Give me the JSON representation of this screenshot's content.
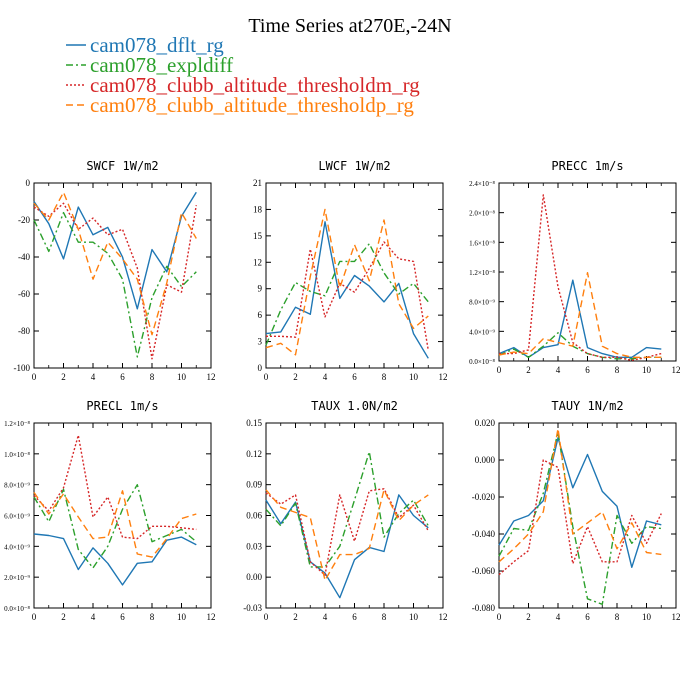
{
  "title": "Time Series at270E,-24N",
  "colors": {
    "blue": "#1f77b4",
    "green": "#2ca02c",
    "red": "#d62728",
    "orange": "#ff7f0e"
  },
  "legend": [
    {
      "label": "cam078_dflt_rg",
      "color": "#1f77b4",
      "dash": "solid"
    },
    {
      "label": "cam078_expldiff",
      "color": "#2ca02c",
      "dash": "dashdot"
    },
    {
      "label": "cam078_clubb_altitude_thresholdm_rg",
      "color": "#d62728",
      "dash": "dotted"
    },
    {
      "label": "cam078_clubb_altitude_thresholdp_rg",
      "color": "#ff7f0e",
      "dash": "dashed"
    }
  ],
  "chart_data": [
    {
      "type": "line",
      "title": "SWCF   1W/m2",
      "xlim": [
        0,
        12
      ],
      "ylim": [
        -100,
        0
      ],
      "xticks": [
        0,
        2,
        4,
        6,
        8,
        10,
        12
      ],
      "xticklabels": [
        "0",
        "2",
        "4",
        "6",
        "8",
        "10",
        "12"
      ],
      "yticks": [
        -100,
        -80,
        -60,
        -40,
        -20,
        0
      ],
      "yticklabels": [
        "-100",
        "-80",
        "-60",
        "-40",
        "-20",
        "0"
      ],
      "x": [
        0,
        1,
        2,
        3,
        4,
        5,
        6,
        7,
        8,
        9,
        10,
        11
      ],
      "series": [
        {
          "name": "cam078_dflt_rg",
          "values": [
            -10,
            -22,
            -41,
            -13,
            -28,
            -24,
            -40,
            -68,
            -36,
            -48,
            -18,
            -5
          ]
        },
        {
          "name": "cam078_expldiff",
          "values": [
            -20,
            -37,
            -16,
            -32,
            -32,
            -38,
            -52,
            -94,
            -62,
            -45,
            -56,
            -48
          ]
        },
        {
          "name": "cam078_clubb_altitude_thresholdm_rg",
          "values": [
            -13,
            -18,
            -11,
            -25,
            -19,
            -28,
            -25,
            -46,
            -95,
            -55,
            -59,
            -12
          ]
        },
        {
          "name": "cam078_clubb_altitude_thresholdp_rg",
          "values": [
            -11,
            -20,
            -5,
            -25,
            -52,
            -32,
            -41,
            -52,
            -82,
            -54,
            -16,
            -30
          ]
        }
      ]
    },
    {
      "type": "line",
      "title": "LWCF   1W/m2",
      "xlim": [
        0,
        12
      ],
      "ylim": [
        0,
        21
      ],
      "xticks": [
        0,
        2,
        4,
        6,
        8,
        10,
        12
      ],
      "xticklabels": [
        "0",
        "2",
        "4",
        "6",
        "8",
        "10",
        "12"
      ],
      "yticks": [
        0,
        3,
        6,
        9,
        12,
        15,
        18,
        21
      ],
      "yticklabels": [
        "0",
        "3",
        "6",
        "9",
        "12",
        "15",
        "18",
        "21"
      ],
      "x": [
        0,
        1,
        2,
        3,
        4,
        5,
        6,
        7,
        8,
        9,
        10,
        11
      ],
      "series": [
        {
          "name": "cam078_dflt_rg",
          "values": [
            3.9,
            4.1,
            6.9,
            6.1,
            16.6,
            7.9,
            10.5,
            9.3,
            7.5,
            9.6,
            3.9,
            1.1
          ]
        },
        {
          "name": "cam078_expldiff",
          "values": [
            2.6,
            6.6,
            9.7,
            8.7,
            8.2,
            12.1,
            12.1,
            14.1,
            10.8,
            8.4,
            9.6,
            7.5
          ]
        },
        {
          "name": "cam078_clubb_altitude_thresholdm_rg",
          "values": [
            3.6,
            3.6,
            3.5,
            13.5,
            5.8,
            9.6,
            8.6,
            11.3,
            14.3,
            12.4,
            12.1,
            2.0
          ]
        },
        {
          "name": "cam078_clubb_altitude_thresholdp_rg",
          "values": [
            2.3,
            2.8,
            1.5,
            10.4,
            18.0,
            9.1,
            14.0,
            9.9,
            16.8,
            7.3,
            4.5,
            5.9
          ]
        }
      ]
    },
    {
      "type": "line",
      "title": "PRECC   1m/s",
      "xlim": [
        0,
        12
      ],
      "ylim": [
        0,
        2.4e-08
      ],
      "xticks": [
        0,
        2,
        4,
        6,
        8,
        10,
        12
      ],
      "xticklabels": [
        "0",
        "2",
        "4",
        "6",
        "8",
        "10",
        "12"
      ],
      "yticks": [
        0,
        4e-09,
        8e-09,
        1.2e-08,
        1.6e-08,
        2e-08,
        2.4e-08
      ],
      "yticklabels": [
        "0.0×10⁻⁸",
        "4.0×10⁻⁹",
        "8.0×10⁻⁹",
        "1.2×10⁻⁸",
        "1.6×10⁻⁸",
        "2.0×10⁻⁸",
        "2.4×10⁻⁸"
      ],
      "x": [
        0,
        1,
        2,
        3,
        4,
        5,
        6,
        7,
        8,
        9,
        10,
        11
      ],
      "series": [
        {
          "name": "cam078_dflt_rg",
          "values": [
            1e-09,
            1.8e-09,
            5e-10,
            1.8e-09,
            2.2e-09,
            1.09e-08,
            1.8e-09,
            1e-09,
            5e-10,
            5e-10,
            1.8e-09,
            1.6e-09
          ]
        },
        {
          "name": "cam078_expldiff",
          "values": [
            8e-10,
            1.6e-09,
            5e-10,
            2e-09,
            3.8e-09,
            2e-09,
            1e-09,
            5e-10,
            3e-10,
            3e-10,
            5e-10,
            5e-10
          ]
        },
        {
          "name": "cam078_clubb_altitude_thresholdm_rg",
          "values": [
            1e-09,
            1e-09,
            1.5e-09,
            2.24e-08,
            1e-08,
            2.5e-09,
            1e-09,
            5e-10,
            5e-10,
            1e-10,
            5e-10,
            1e-09
          ]
        },
        {
          "name": "cam078_clubb_altitude_thresholdp_rg",
          "values": [
            8e-10,
            1.2e-09,
            1e-09,
            3e-09,
            2.5e-09,
            2e-09,
            1.19e-08,
            2e-09,
            1e-09,
            5e-10,
            5e-10,
            5e-10
          ]
        }
      ]
    },
    {
      "type": "line",
      "title": "PRECL   1m/s",
      "xlim": [
        0,
        12
      ],
      "ylim": [
        0,
        1.2e-08
      ],
      "xticks": [
        0,
        2,
        4,
        6,
        8,
        10,
        12
      ],
      "xticklabels": [
        "0",
        "2",
        "4",
        "6",
        "8",
        "10",
        "12"
      ],
      "yticks": [
        0,
        2e-09,
        4e-09,
        6e-09,
        8e-09,
        1e-08,
        1.2e-08
      ],
      "yticklabels": [
        "0.0×10⁻⁸",
        "2.0×10⁻⁹",
        "4.0×10⁻⁹",
        "6.0×10⁻⁹",
        "8.0×10⁻⁹",
        "1.0×10⁻⁸",
        "1.2×10⁻⁸"
      ],
      "x": [
        0,
        1,
        2,
        3,
        4,
        5,
        6,
        7,
        8,
        9,
        10,
        11
      ],
      "series": [
        {
          "name": "cam078_dflt_rg",
          "values": [
            4.8e-09,
            4.7e-09,
            4.5e-09,
            2.5e-09,
            3.9e-09,
            2.9e-09,
            1.5e-09,
            2.9e-09,
            3e-09,
            4.4e-09,
            4.6e-09,
            4.1e-09
          ]
        },
        {
          "name": "cam078_expldiff",
          "values": [
            7.2e-09,
            5.6e-09,
            7.7e-09,
            3.8e-09,
            2.6e-09,
            4e-09,
            6.4e-09,
            8e-09,
            4.3e-09,
            4.7e-09,
            5.1e-09,
            4.3e-09
          ]
        },
        {
          "name": "cam078_clubb_altitude_thresholdm_rg",
          "values": [
            7.3e-09,
            6.3e-09,
            7.8e-09,
            1.12e-08,
            5.9e-09,
            7.2e-09,
            4.6e-09,
            4.5e-09,
            5.3e-09,
            5.3e-09,
            5.2e-09,
            5.1e-09
          ]
        },
        {
          "name": "cam078_clubb_altitude_thresholdp_rg",
          "values": [
            7.5e-09,
            6.1e-09,
            7.4e-09,
            5.9e-09,
            4.5e-09,
            4.6e-09,
            7.6e-09,
            3.5e-09,
            3.3e-09,
            4.5e-09,
            5.8e-09,
            6.1e-09
          ]
        }
      ]
    },
    {
      "type": "line",
      "title": "TAUX   1.0N/m2",
      "xlim": [
        0,
        12
      ],
      "ylim": [
        -0.03,
        0.15
      ],
      "xticks": [
        0,
        2,
        4,
        6,
        8,
        10,
        12
      ],
      "xticklabels": [
        "0",
        "2",
        "4",
        "6",
        "8",
        "10",
        "12"
      ],
      "yticks": [
        -0.03,
        0,
        0.03,
        0.06,
        0.09,
        0.12,
        0.15
      ],
      "yticklabels": [
        "-0.03",
        "0.00",
        "0.03",
        "0.06",
        "0.09",
        "0.12",
        "0.15"
      ],
      "x": [
        0,
        1,
        2,
        3,
        4,
        5,
        6,
        7,
        8,
        9,
        10,
        11
      ],
      "series": [
        {
          "name": "cam078_dflt_rg",
          "values": [
            0.075,
            0.052,
            0.073,
            0.015,
            0.004,
            -0.02,
            0.017,
            0.029,
            0.025,
            0.08,
            0.06,
            0.048
          ]
        },
        {
          "name": "cam078_expldiff",
          "values": [
            0.066,
            0.05,
            0.072,
            0.01,
            0.01,
            0.03,
            0.075,
            0.122,
            0.039,
            0.062,
            0.075,
            0.05
          ]
        },
        {
          "name": "cam078_clubb_altitude_thresholdm_rg",
          "values": [
            0.082,
            0.071,
            0.08,
            0.015,
            0.002,
            0.08,
            0.035,
            0.084,
            0.086,
            0.058,
            0.07,
            0.045
          ]
        },
        {
          "name": "cam078_clubb_altitude_thresholdp_rg",
          "values": [
            0.085,
            0.068,
            0.063,
            0.058,
            -0.003,
            0.022,
            0.022,
            0.028,
            0.085,
            0.055,
            0.07,
            0.08
          ]
        }
      ]
    },
    {
      "type": "line",
      "title": "TAUY   1N/m2",
      "xlim": [
        0,
        12
      ],
      "ylim": [
        -0.08,
        0.02
      ],
      "xticks": [
        0,
        2,
        4,
        6,
        8,
        10,
        12
      ],
      "xticklabels": [
        "0",
        "2",
        "4",
        "6",
        "8",
        "10",
        "12"
      ],
      "yticks": [
        -0.08,
        -0.06,
        -0.04,
        -0.02,
        0,
        0.02
      ],
      "yticklabels": [
        "-0.080",
        "-0.060",
        "-0.040",
        "-0.020",
        "0.000",
        "0.020"
      ],
      "x": [
        0,
        1,
        2,
        3,
        4,
        5,
        6,
        7,
        8,
        9,
        10,
        11
      ],
      "series": [
        {
          "name": "cam078_dflt_rg",
          "values": [
            -0.046,
            -0.033,
            -0.03,
            -0.022,
            0.012,
            -0.015,
            0.003,
            -0.017,
            -0.025,
            -0.058,
            -0.033,
            -0.035
          ]
        },
        {
          "name": "cam078_expldiff",
          "values": [
            -0.052,
            -0.037,
            -0.038,
            -0.018,
            0.015,
            -0.036,
            -0.075,
            -0.078,
            -0.03,
            -0.045,
            -0.036,
            -0.037
          ]
        },
        {
          "name": "cam078_clubb_altitude_thresholdm_rg",
          "values": [
            -0.062,
            -0.055,
            -0.049,
            0.0,
            -0.004,
            -0.056,
            -0.036,
            -0.055,
            -0.055,
            -0.03,
            -0.045,
            -0.029
          ]
        },
        {
          "name": "cam078_clubb_altitude_thresholdp_rg",
          "values": [
            -0.055,
            -0.048,
            -0.04,
            -0.028,
            0.017,
            -0.04,
            -0.034,
            -0.028,
            -0.048,
            -0.034,
            -0.05,
            -0.051
          ]
        }
      ]
    }
  ]
}
